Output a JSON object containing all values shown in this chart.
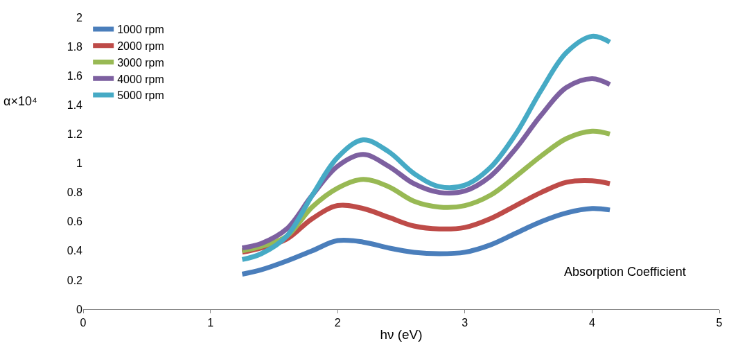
{
  "chart_data": {
    "type": "line",
    "xlabel": "hν (eV)",
    "ylabel": "α×10⁴",
    "x": [
      1.25,
      1.4,
      1.6,
      1.8,
      2.0,
      2.2,
      2.4,
      2.6,
      2.8,
      3.0,
      3.2,
      3.4,
      3.6,
      3.8,
      4.0,
      4.14
    ],
    "series": [
      {
        "name": "1000 rpm",
        "color": "#4a7ebb",
        "values": [
          0.24,
          0.27,
          0.33,
          0.4,
          0.47,
          0.46,
          0.42,
          0.39,
          0.38,
          0.39,
          0.44,
          0.52,
          0.6,
          0.66,
          0.69,
          0.68
        ]
      },
      {
        "name": "2000 rpm",
        "color": "#be4b48",
        "values": [
          0.39,
          0.42,
          0.48,
          0.62,
          0.71,
          0.69,
          0.63,
          0.57,
          0.55,
          0.56,
          0.62,
          0.71,
          0.8,
          0.87,
          0.88,
          0.86
        ]
      },
      {
        "name": "3000 rpm",
        "color": "#98b954",
        "values": [
          0.4,
          0.43,
          0.5,
          0.7,
          0.83,
          0.89,
          0.84,
          0.74,
          0.7,
          0.71,
          0.78,
          0.91,
          1.05,
          1.17,
          1.22,
          1.2
        ]
      },
      {
        "name": "4000 rpm",
        "color": "#7d60a0",
        "values": [
          0.42,
          0.45,
          0.55,
          0.78,
          0.98,
          1.06,
          0.98,
          0.86,
          0.8,
          0.81,
          0.91,
          1.1,
          1.33,
          1.52,
          1.58,
          1.54
        ]
      },
      {
        "name": "5000 rpm",
        "color": "#46aac5",
        "values": [
          0.34,
          0.38,
          0.5,
          0.78,
          1.04,
          1.16,
          1.08,
          0.93,
          0.84,
          0.85,
          0.97,
          1.2,
          1.5,
          1.76,
          1.87,
          1.83
        ]
      }
    ],
    "xlim": [
      0,
      5
    ],
    "xticks": [
      0,
      1,
      2,
      3,
      4,
      5
    ],
    "ylim": [
      0,
      2
    ],
    "yticks": [
      0,
      0.2,
      0.4,
      0.6,
      0.8,
      1,
      1.2,
      1.4,
      1.6,
      1.8,
      2
    ],
    "legend": "top left",
    "marker": "none",
    "line_style": "solid",
    "annotations": [
      "Absorption Coefficient"
    ]
  }
}
